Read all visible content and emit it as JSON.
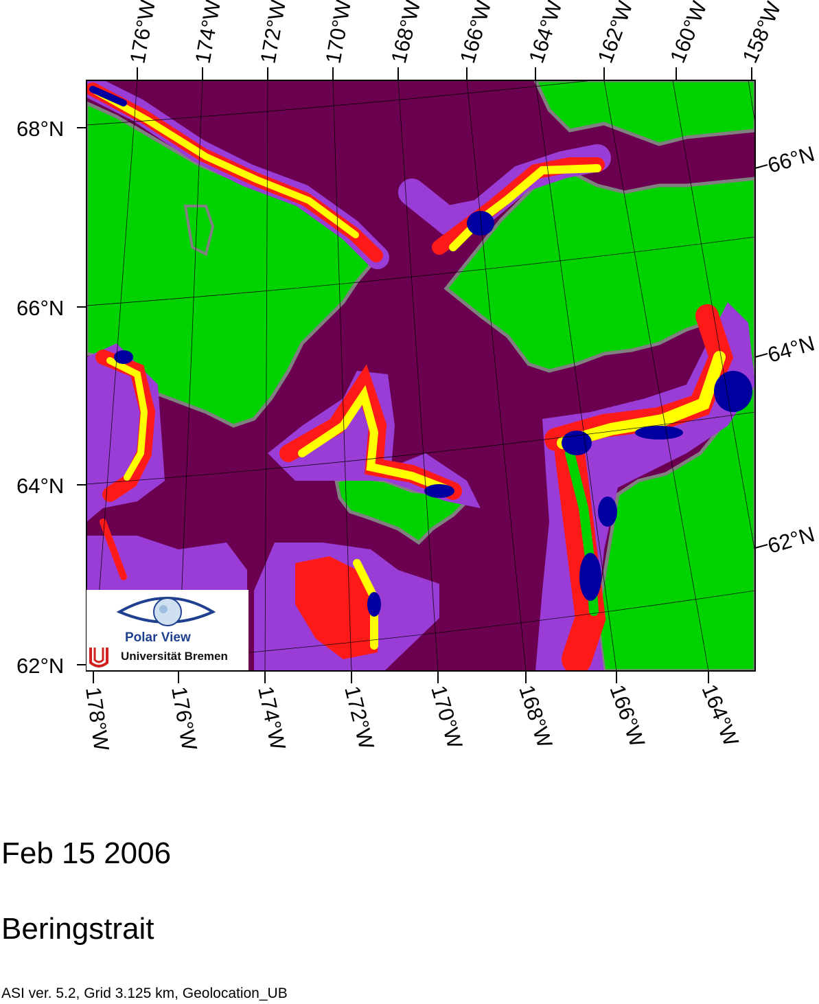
{
  "map": {
    "date": "Feb 15 2006",
    "region": "Beringstrait",
    "product": "ASI ver. 5.2,  Grid 3.125 km, Geolocation_UB",
    "top_lon_labels": [
      "176°W",
      "174°W",
      "172°W",
      "170°W",
      "168°W",
      "166°W",
      "164°W",
      "162°W",
      "160°W",
      "158°W"
    ],
    "bottom_lon_labels": [
      "178°W",
      "176°W",
      "174°W",
      "172°W",
      "170°W",
      "168°W",
      "166°W",
      "164°W"
    ],
    "left_lat_labels": [
      "68°N",
      "66°N",
      "64°N",
      "62°N"
    ],
    "right_lat_labels": [
      "66°N",
      "64°N",
      "62°N"
    ],
    "colors": {
      "open_water": "#6b0050",
      "land": "#00d200",
      "coast": "#808080",
      "ice_low": "#9a3dd6",
      "ice_mid": "#ff1a1a",
      "ice_high": "#ffff00",
      "ice_very_high": "#0000a0"
    }
  },
  "logo": {
    "name": "Polar View",
    "org": "Universität Bremen",
    "icon": "eye-globe-icon"
  }
}
